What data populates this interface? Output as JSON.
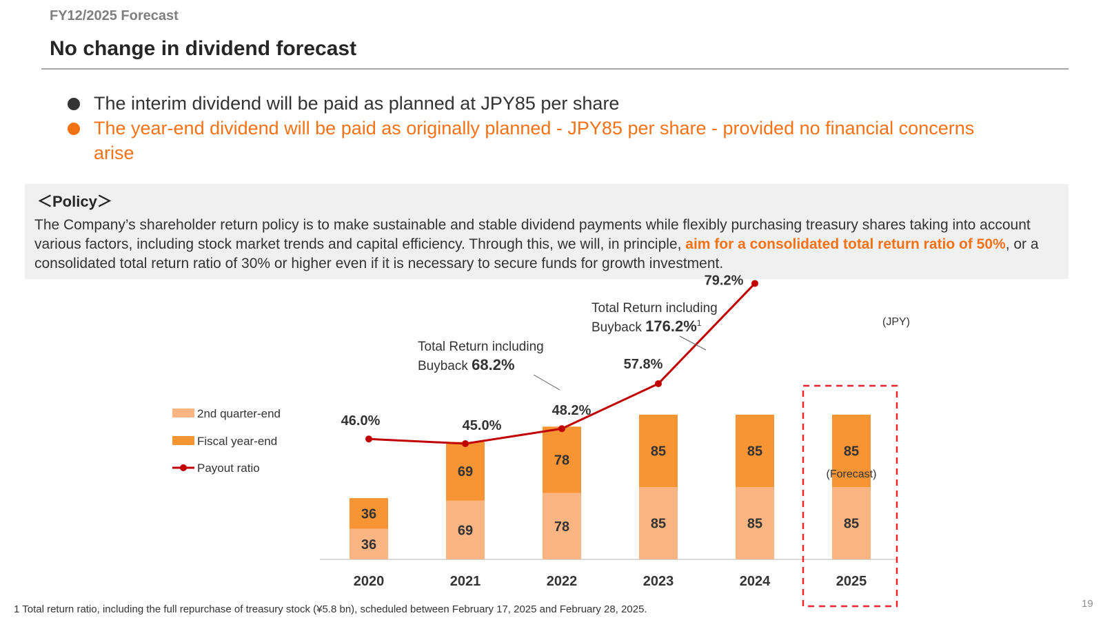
{
  "header": {
    "kicker": "FY12/2025 Forecast",
    "title": "No change in dividend forecast"
  },
  "bullets": [
    "The interim dividend will be paid as planned at JPY85 per share",
    "The year-end dividend will be paid as originally planned - JPY85 per share - provided no financial concerns arise"
  ],
  "policy": {
    "heading": "＜Policy＞",
    "text_before": "The Company’s shareholder return policy is to make sustainable and stable dividend payments while flexibly purchasing treasury shares taking into account various factors, including stock market trends and capital efficiency. Through this, we will, in principle, ",
    "highlight": "aim for a consolidated total return ratio of 50%",
    "text_after": ", or a consolidated total return ratio of 30% or higher even if it is necessary to secure funds for growth investment."
  },
  "chart_data": {
    "type": "bar",
    "stacked": true,
    "unit_label": "(JPY)",
    "categories": [
      "2020",
      "2021",
      "2022",
      "2023",
      "2024",
      "2025"
    ],
    "series": [
      {
        "name": "2nd quarter-end",
        "values": [
          36,
          69,
          78,
          85,
          85,
          85
        ],
        "color": "#fbb583"
      },
      {
        "name": "Fiscal year-end",
        "values": [
          36,
          69,
          78,
          85,
          85,
          85
        ],
        "color": "#f79433"
      }
    ],
    "line_series": {
      "name": "Payout ratio",
      "values": [
        46.0,
        45.0,
        48.2,
        57.8,
        79.2
      ],
      "labels": [
        "46.0%",
        "45.0%",
        "48.2%",
        "57.8%",
        "79.2%"
      ],
      "color": "#c00000"
    },
    "forecast_note": "(Forecast)",
    "forecast_highlight_color": "#e8232a",
    "annotations": [
      {
        "line1": "Total Return including",
        "line2_prefix": "Buyback ",
        "value": "68.2%",
        "sup": ""
      },
      {
        "line1": "Total Return including",
        "line2_prefix": "Buyback ",
        "value": "176.2%",
        "sup": "1"
      }
    ],
    "ylim": [
      0,
      180
    ]
  },
  "footnote": "1 Total return ratio, including the full repurchase of treasury stock (¥5.8 bn), scheduled between February 17, 2025 and February 28, 2025.",
  "page_number": "19"
}
